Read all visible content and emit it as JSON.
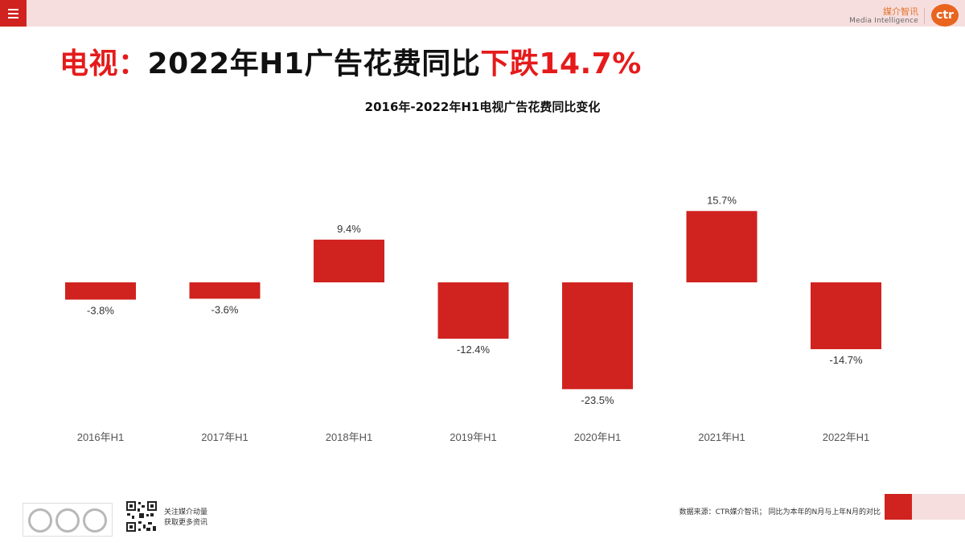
{
  "header": {
    "brand_cn": "媒介智讯",
    "brand_en": "Media Intelligence",
    "logo_text": "ctr"
  },
  "headline": {
    "part1": "电视：",
    "part2": "2022年H1广告花费同比",
    "part3": "下跌14.7%"
  },
  "colors": {
    "accent": "#d0231f",
    "headline_red": "#e51b1b",
    "bar": "#d0231f",
    "topbar": "#f7dede"
  },
  "chart_data": {
    "type": "bar",
    "title": "2016年-2022年H1电视广告花费同比变化",
    "categories": [
      "2016年H1",
      "2017年H1",
      "2018年H1",
      "2019年H1",
      "2020年H1",
      "2021年H1",
      "2022年H1"
    ],
    "values": [
      -3.8,
      -3.6,
      9.4,
      -12.4,
      -23.5,
      15.7,
      -14.7
    ],
    "value_labels": [
      "-3.8%",
      "-3.6%",
      "9.4%",
      "-12.4%",
      "-23.5%",
      "15.7%",
      "-14.7%"
    ],
    "unit": "%",
    "xlabel": "",
    "ylabel": "",
    "ylim": [
      -25,
      18
    ],
    "grid": false,
    "legend": "none"
  },
  "footer": {
    "follow_line1": "关注媒介动量",
    "follow_line2": "获取更多资讯",
    "source": "数据来源：CTR媒介智讯；  同比为本年的N月与上年N月的对比"
  }
}
